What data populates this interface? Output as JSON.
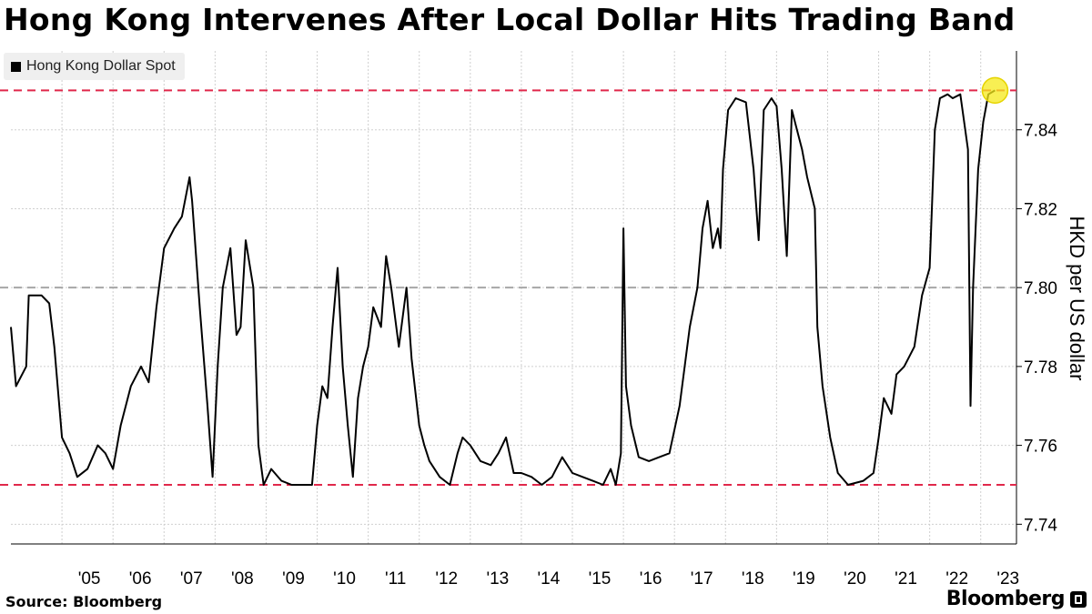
{
  "title": "Hong Kong Intervenes After Local Dollar Hits Trading Band",
  "source": "Source: Bloomberg",
  "brand": "Bloomberg",
  "colors": {
    "line": "#000000",
    "band": "#e0284b",
    "peg": "#a6a6a6",
    "highlight": "#f5ea1a"
  },
  "chart_data": {
    "type": "line",
    "series": [
      {
        "name": "Hong Kong Dollar Spot",
        "points": [
          [
            2004.0,
            7.79
          ],
          [
            2004.1,
            7.775
          ],
          [
            2004.3,
            7.78
          ],
          [
            2004.35,
            7.798
          ],
          [
            2004.6,
            7.798
          ],
          [
            2004.75,
            7.796
          ],
          [
            2004.85,
            7.785
          ],
          [
            2005.0,
            7.762
          ],
          [
            2005.15,
            7.758
          ],
          [
            2005.3,
            7.752
          ],
          [
            2005.5,
            7.754
          ],
          [
            2005.7,
            7.76
          ],
          [
            2005.85,
            7.758
          ],
          [
            2006.0,
            7.754
          ],
          [
            2006.15,
            7.765
          ],
          [
            2006.35,
            7.775
          ],
          [
            2006.55,
            7.78
          ],
          [
            2006.7,
            7.776
          ],
          [
            2006.85,
            7.795
          ],
          [
            2007.0,
            7.81
          ],
          [
            2007.2,
            7.815
          ],
          [
            2007.35,
            7.818
          ],
          [
            2007.5,
            7.828
          ],
          [
            2007.55,
            7.822
          ],
          [
            2007.7,
            7.795
          ],
          [
            2007.85,
            7.77
          ],
          [
            2007.95,
            7.752
          ],
          [
            2008.05,
            7.78
          ],
          [
            2008.15,
            7.8
          ],
          [
            2008.3,
            7.81
          ],
          [
            2008.42,
            7.788
          ],
          [
            2008.5,
            7.79
          ],
          [
            2008.6,
            7.812
          ],
          [
            2008.75,
            7.8
          ],
          [
            2008.85,
            7.76
          ],
          [
            2008.95,
            7.75
          ],
          [
            2009.1,
            7.754
          ],
          [
            2009.3,
            7.751
          ],
          [
            2009.5,
            7.75
          ],
          [
            2009.9,
            7.75
          ],
          [
            2010.0,
            7.765
          ],
          [
            2010.1,
            7.775
          ],
          [
            2010.2,
            7.772
          ],
          [
            2010.3,
            7.79
          ],
          [
            2010.4,
            7.805
          ],
          [
            2010.5,
            7.78
          ],
          [
            2010.6,
            7.765
          ],
          [
            2010.7,
            7.752
          ],
          [
            2010.8,
            7.772
          ],
          [
            2010.9,
            7.78
          ],
          [
            2011.0,
            7.785
          ],
          [
            2011.1,
            7.795
          ],
          [
            2011.25,
            7.79
          ],
          [
            2011.35,
            7.808
          ],
          [
            2011.45,
            7.8
          ],
          [
            2011.6,
            7.785
          ],
          [
            2011.75,
            7.8
          ],
          [
            2011.85,
            7.782
          ],
          [
            2012.0,
            7.765
          ],
          [
            2012.1,
            7.76
          ],
          [
            2012.2,
            7.756
          ],
          [
            2012.4,
            7.752
          ],
          [
            2012.6,
            7.75
          ],
          [
            2012.75,
            7.758
          ],
          [
            2012.85,
            7.762
          ],
          [
            2013.0,
            7.76
          ],
          [
            2013.2,
            7.756
          ],
          [
            2013.4,
            7.755
          ],
          [
            2013.55,
            7.758
          ],
          [
            2013.7,
            7.762
          ],
          [
            2013.85,
            7.753
          ],
          [
            2014.0,
            7.753
          ],
          [
            2014.2,
            7.752
          ],
          [
            2014.4,
            7.75
          ],
          [
            2014.6,
            7.752
          ],
          [
            2014.8,
            7.757
          ],
          [
            2015.0,
            7.753
          ],
          [
            2015.2,
            7.752
          ],
          [
            2015.4,
            7.751
          ],
          [
            2015.6,
            7.75
          ],
          [
            2015.75,
            7.754
          ],
          [
            2015.85,
            7.75
          ],
          [
            2015.95,
            7.758
          ],
          [
            2016.0,
            7.815
          ],
          [
            2016.05,
            7.775
          ],
          [
            2016.15,
            7.765
          ],
          [
            2016.3,
            7.757
          ],
          [
            2016.5,
            7.756
          ],
          [
            2016.7,
            7.757
          ],
          [
            2016.9,
            7.758
          ],
          [
            2017.1,
            7.77
          ],
          [
            2017.3,
            7.79
          ],
          [
            2017.45,
            7.8
          ],
          [
            2017.55,
            7.815
          ],
          [
            2017.65,
            7.822
          ],
          [
            2017.75,
            7.81
          ],
          [
            2017.85,
            7.815
          ],
          [
            2017.9,
            7.81
          ],
          [
            2017.95,
            7.83
          ],
          [
            2018.05,
            7.845
          ],
          [
            2018.2,
            7.848
          ],
          [
            2018.4,
            7.847
          ],
          [
            2018.55,
            7.83
          ],
          [
            2018.65,
            7.812
          ],
          [
            2018.75,
            7.845
          ],
          [
            2018.9,
            7.848
          ],
          [
            2019.0,
            7.846
          ],
          [
            2019.1,
            7.83
          ],
          [
            2019.2,
            7.808
          ],
          [
            2019.3,
            7.845
          ],
          [
            2019.4,
            7.84
          ],
          [
            2019.5,
            7.835
          ],
          [
            2019.6,
            7.828
          ],
          [
            2019.75,
            7.82
          ],
          [
            2019.8,
            7.79
          ],
          [
            2019.9,
            7.775
          ],
          [
            2020.05,
            7.762
          ],
          [
            2020.2,
            7.753
          ],
          [
            2020.4,
            7.75
          ],
          [
            2020.7,
            7.751
          ],
          [
            2020.9,
            7.753
          ],
          [
            2021.0,
            7.762
          ],
          [
            2021.1,
            7.772
          ],
          [
            2021.25,
            7.768
          ],
          [
            2021.35,
            7.778
          ],
          [
            2021.5,
            7.78
          ],
          [
            2021.7,
            7.785
          ],
          [
            2021.85,
            7.798
          ],
          [
            2022.0,
            7.805
          ],
          [
            2022.1,
            7.84
          ],
          [
            2022.2,
            7.848
          ],
          [
            2022.35,
            7.849
          ],
          [
            2022.45,
            7.848
          ],
          [
            2022.6,
            7.849
          ],
          [
            2022.75,
            7.835
          ],
          [
            2022.8,
            7.77
          ],
          [
            2022.85,
            7.8
          ],
          [
            2022.95,
            7.83
          ],
          [
            2023.05,
            7.842
          ],
          [
            2023.15,
            7.849
          ],
          [
            2023.28,
            7.85
          ]
        ]
      }
    ],
    "x_range": [
      2004.0,
      2023.7
    ],
    "xticks": [
      {
        "value": 2005,
        "label": "'05"
      },
      {
        "value": 2006,
        "label": "'06"
      },
      {
        "value": 2007,
        "label": "'07"
      },
      {
        "value": 2008,
        "label": "'08"
      },
      {
        "value": 2009,
        "label": "'09"
      },
      {
        "value": 2010,
        "label": "'10"
      },
      {
        "value": 2011,
        "label": "'11"
      },
      {
        "value": 2012,
        "label": "'12"
      },
      {
        "value": 2013,
        "label": "'13"
      },
      {
        "value": 2014,
        "label": "'14"
      },
      {
        "value": 2015,
        "label": "'15"
      },
      {
        "value": 2016,
        "label": "'16"
      },
      {
        "value": 2017,
        "label": "'17"
      },
      {
        "value": 2018,
        "label": "'18"
      },
      {
        "value": 2019,
        "label": "'19"
      },
      {
        "value": 2020,
        "label": "'20"
      },
      {
        "value": 2021,
        "label": "'21"
      },
      {
        "value": 2022,
        "label": "'22"
      },
      {
        "value": 2023,
        "label": "'23"
      }
    ],
    "y_range": [
      7.735,
      7.86
    ],
    "yticks": [
      7.74,
      7.76,
      7.78,
      7.8,
      7.82,
      7.84
    ],
    "ytick_labels": [
      "7.74",
      "7.76",
      "7.78",
      "7.80",
      "7.82",
      "7.84"
    ],
    "ylabel": "HKD per US dollar",
    "y_axis_side": "right",
    "grid": "vertical-and-horizontal-dotted",
    "reference_lines": [
      {
        "value": 7.85,
        "style": "dashed",
        "color": "band"
      },
      {
        "value": 7.8,
        "style": "dashed",
        "color": "peg"
      },
      {
        "value": 7.75,
        "style": "dashed",
        "color": "band"
      }
    ],
    "highlight": {
      "x": 2023.28,
      "y": 7.85
    },
    "legend": "top-left"
  }
}
